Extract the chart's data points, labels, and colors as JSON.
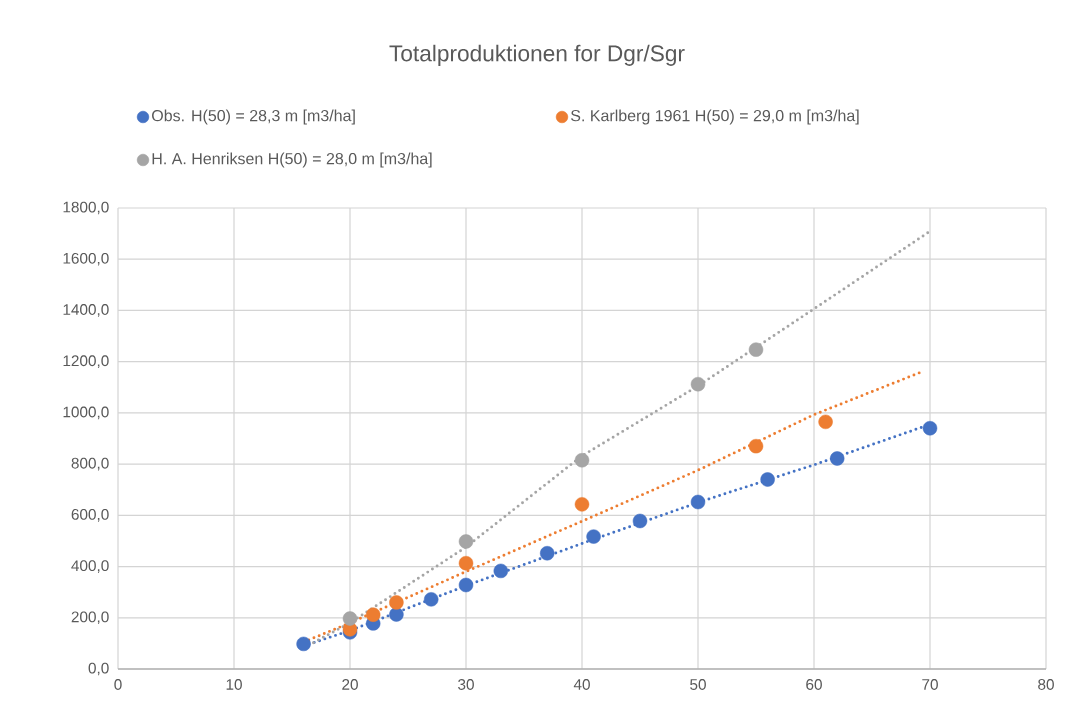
{
  "chart_data": {
    "type": "scatter",
    "title": "Totalproduktionen for Dgr/Sgr",
    "series": [
      {
        "name": "Obs. H(50) = 28,3 m [m3/ha]",
        "color": "#4472c4",
        "x": [
          16,
          20,
          22,
          24,
          27,
          30,
          33,
          37,
          41,
          45,
          50,
          56,
          62,
          70
        ],
        "values": [
          98,
          143,
          178,
          213,
          272,
          328,
          383,
          452,
          517,
          578,
          652,
          740,
          822,
          940
        ]
      },
      {
        "name": "S. Karlberg 1961 H(50) = 29,0 m [m3/ha]",
        "color": "#ed7d31",
        "x": [
          20,
          22,
          24,
          30,
          40,
          55,
          61
        ],
        "values": [
          155,
          212,
          260,
          413,
          643,
          870,
          965
        ]
      },
      {
        "name": "H. A. Henriksen H(50) = 28,0 m [m3/ha]",
        "color": "#a5a5a5",
        "x": [
          20,
          30,
          40,
          50,
          55
        ],
        "values": [
          197,
          498,
          815,
          1112,
          1247
        ]
      },
      {
        "type": "line",
        "color": "#4472c4",
        "marker": "none",
        "line_style": "dotted",
        "x": [
          16,
          20,
          30,
          40,
          50,
          60,
          70
        ],
        "values": [
          90,
          150,
          325,
          490,
          650,
          797,
          955
        ]
      },
      {
        "type": "line",
        "color": "#ed7d31",
        "marker": "none",
        "line_style": "dotted",
        "x": [
          16,
          20,
          30,
          40,
          50,
          60,
          69.5
        ],
        "values": [
          105,
          180,
          380,
          577,
          776,
          993,
          1164
        ]
      },
      {
        "type": "line",
        "color": "#a5a5a5",
        "marker": "none",
        "line_style": "dotted",
        "x": [
          16,
          20,
          30,
          40,
          50,
          60,
          70
        ],
        "values": [
          82,
          180,
          476,
          832,
          1105,
          1406,
          1709
        ]
      }
    ],
    "marker": "circle",
    "grid": true,
    "legend": "top",
    "xlim": [
      0,
      80
    ],
    "xticks": [
      0,
      10,
      20,
      30,
      40,
      50,
      60,
      70,
      80
    ],
    "ylim": [
      0,
      1800
    ],
    "yticks": [
      {
        "value": 0,
        "label": "0,0"
      },
      {
        "value": 200,
        "label": "200,0"
      },
      {
        "value": 400,
        "label": "400,0"
      },
      {
        "value": 600,
        "label": "600,0"
      },
      {
        "value": 800,
        "label": "800,0"
      },
      {
        "value": 1000,
        "label": "1000,0"
      },
      {
        "value": 1200,
        "label": "1200,0"
      },
      {
        "value": 1400,
        "label": "1400,0"
      },
      {
        "value": 1600,
        "label": "1600,0"
      },
      {
        "value": 1800,
        "label": "1800,0"
      }
    ]
  }
}
